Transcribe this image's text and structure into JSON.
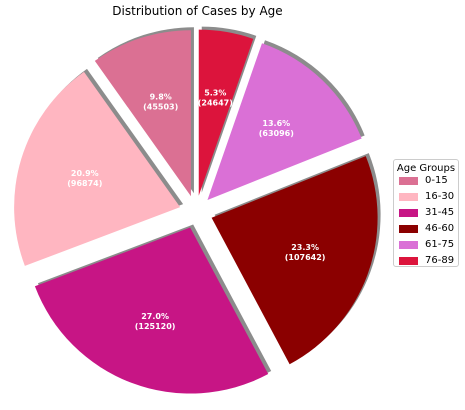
{
  "chart_data": {
    "type": "pie",
    "title": "Distribution of Cases by Age",
    "legend_title": "Age Groups",
    "legend_position": "right",
    "exploded": true,
    "shadow": true,
    "start_angle_deg": 90,
    "direction": "counterclockwise",
    "slices": [
      {
        "label": "0-15",
        "value": 45503,
        "pct_label": "9.8%",
        "value_label": "(45503)",
        "color": "#DB7093"
      },
      {
        "label": "16-30",
        "value": 96874,
        "pct_label": "20.9%",
        "value_label": "(96874)",
        "color": "#FFB6C1"
      },
      {
        "label": "31-45",
        "value": 125120,
        "pct_label": "27.0%",
        "value_label": "(125120)",
        "color": "#C71585"
      },
      {
        "label": "46-60",
        "value": 107642,
        "pct_label": "23.3%",
        "value_label": "(107642)",
        "color": "#8B0000"
      },
      {
        "label": "61-75",
        "value": 63096,
        "pct_label": "13.6%",
        "value_label": "(63096)",
        "color": "#DA70D6"
      },
      {
        "label": "76-89",
        "value": 24647,
        "pct_label": "5.3%",
        "value_label": "(24647)",
        "color": "#DC143C"
      }
    ]
  }
}
